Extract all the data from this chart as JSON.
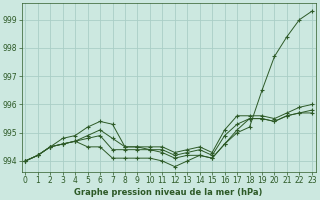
{
  "xlabel": "Graphe pression niveau de la mer (hPa)",
  "background_color": "#cce8e0",
  "grid_color": "#aacec6",
  "line_color": "#2d5a27",
  "ylim": [
    993.6,
    999.6
  ],
  "xlim": [
    -0.3,
    23.3
  ],
  "yticks": [
    994,
    995,
    996,
    997,
    998,
    999
  ],
  "xticks": [
    0,
    1,
    2,
    3,
    4,
    5,
    6,
    7,
    8,
    9,
    10,
    11,
    12,
    13,
    14,
    15,
    16,
    17,
    18,
    19,
    20,
    21,
    22,
    23
  ],
  "series": [
    [
      994.0,
      994.2,
      994.5,
      994.6,
      994.7,
      994.5,
      994.5,
      994.1,
      994.1,
      994.1,
      994.1,
      994.0,
      993.8,
      994.0,
      994.2,
      994.1,
      994.6,
      995.0,
      995.2,
      996.5,
      997.7,
      998.4,
      999.0,
      999.3
    ],
    [
      994.0,
      994.2,
      994.5,
      994.6,
      994.7,
      994.8,
      994.9,
      994.4,
      994.4,
      994.4,
      994.4,
      994.3,
      994.1,
      994.2,
      994.2,
      994.1,
      994.6,
      995.1,
      995.5,
      995.5,
      995.4,
      995.6,
      995.7,
      995.7
    ],
    [
      994.0,
      994.2,
      994.5,
      994.6,
      994.7,
      994.9,
      995.1,
      994.8,
      994.5,
      994.5,
      994.4,
      994.4,
      994.2,
      994.3,
      994.4,
      994.2,
      994.9,
      995.3,
      995.5,
      995.5,
      995.4,
      995.6,
      995.7,
      995.8
    ],
    [
      994.0,
      994.2,
      994.5,
      994.8,
      994.9,
      995.2,
      995.4,
      995.3,
      994.5,
      994.5,
      994.5,
      994.5,
      994.3,
      994.4,
      994.5,
      994.3,
      995.1,
      995.6,
      995.6,
      995.6,
      995.5,
      995.7,
      995.9,
      996.0
    ]
  ]
}
